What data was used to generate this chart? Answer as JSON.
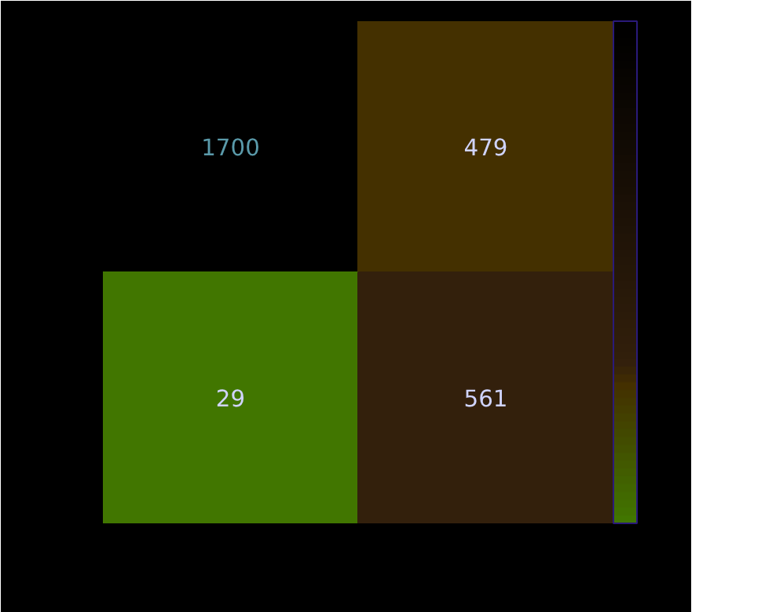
{
  "chart_data": {
    "type": "heatmap",
    "categories": [
      null,
      null
    ],
    "y_categories": [
      null,
      null
    ],
    "cells": [
      [
        1700,
        479
      ],
      [
        29,
        561
      ]
    ],
    "colors": [
      [
        "#000000",
        "#443000"
      ],
      [
        "#417600",
        "#33200c"
      ]
    ],
    "data_labels": true,
    "tick_labels": false
  }
}
